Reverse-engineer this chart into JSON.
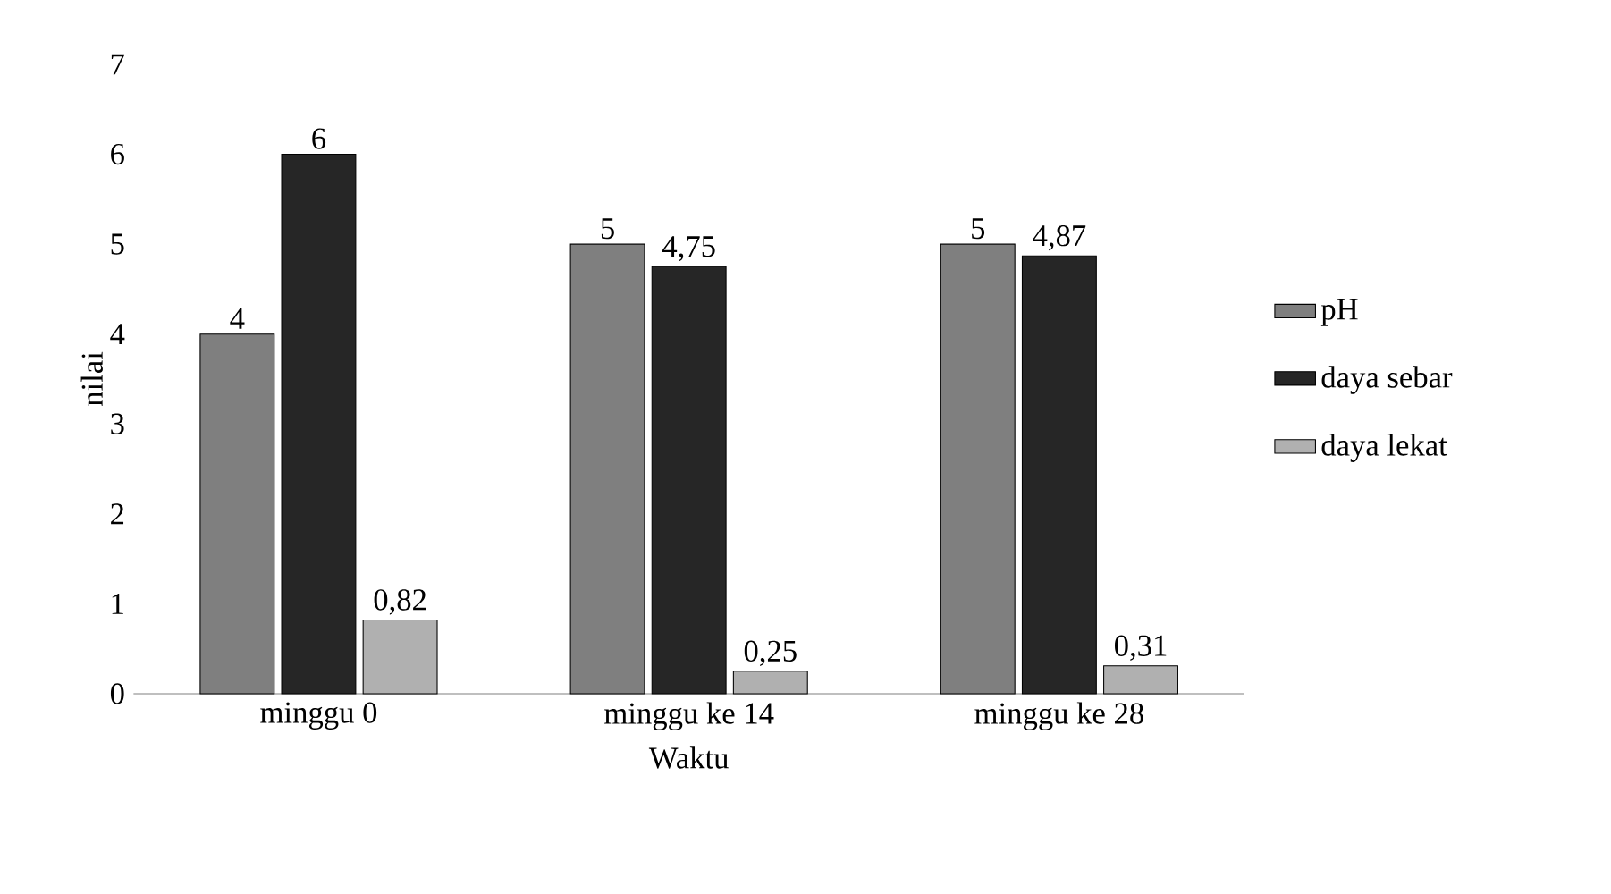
{
  "chart_data": {
    "type": "bar",
    "xlabel": "Waktu",
    "ylabel": "nilai",
    "categories": [
      "minggu 0",
      "minggu ke 14",
      "minggu ke 28"
    ],
    "series": [
      {
        "name": "pH",
        "color": "#7f7f7f",
        "values": [
          4,
          5,
          5
        ],
        "value_labels": [
          "4",
          "5",
          "5"
        ]
      },
      {
        "name": "daya sebar",
        "color": "#262626",
        "values": [
          6,
          4.75,
          4.87
        ],
        "value_labels": [
          "6",
          "4,75",
          "4,87"
        ]
      },
      {
        "name": "daya lekat",
        "color": "#b0b0b0",
        "values": [
          0.82,
          0.25,
          0.31
        ],
        "value_labels": [
          "0,82",
          "0,25",
          "0,31"
        ]
      }
    ],
    "ylim": [
      0,
      7
    ],
    "yticks": [
      0,
      1,
      2,
      3,
      4,
      5,
      6,
      7
    ],
    "grid": false,
    "legend": "right"
  }
}
